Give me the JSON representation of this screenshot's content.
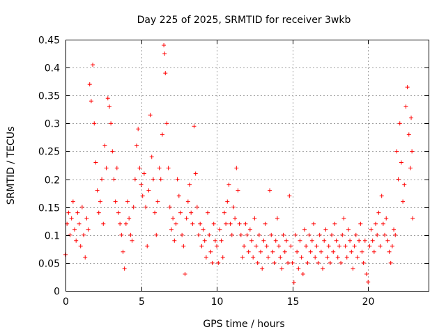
{
  "chart_data": {
    "type": "scatter",
    "title": "Day 225 of 2025, SRMTID for receiver 3wkb",
    "xlabel": "GPS time / hours",
    "ylabel": "SRMTID / TECUs",
    "xlim": [
      0,
      24
    ],
    "ylim": [
      0,
      0.45
    ],
    "xticks": [
      0,
      5,
      10,
      15,
      20
    ],
    "yticks": [
      0,
      0.05,
      0.1,
      0.15,
      0.2,
      0.25,
      0.3,
      0.35,
      0.4,
      0.45
    ],
    "grid": true,
    "marker": "+",
    "color": "#ff0000",
    "series": [
      {
        "name": "SRMTID",
        "points": [
          [
            0.0,
            0.065
          ],
          [
            0.1,
            0.12
          ],
          [
            0.2,
            0.14
          ],
          [
            0.3,
            0.1
          ],
          [
            0.4,
            0.13
          ],
          [
            0.5,
            0.16
          ],
          [
            0.6,
            0.11
          ],
          [
            0.7,
            0.09
          ],
          [
            0.8,
            0.14
          ],
          [
            0.9,
            0.12
          ],
          [
            1.0,
            0.08
          ],
          [
            1.1,
            0.15
          ],
          [
            1.2,
            0.1
          ],
          [
            1.3,
            0.06
          ],
          [
            1.4,
            0.13
          ],
          [
            1.5,
            0.11
          ],
          [
            1.6,
            0.37
          ],
          [
            1.7,
            0.34
          ],
          [
            1.8,
            0.405
          ],
          [
            1.9,
            0.3
          ],
          [
            2.0,
            0.23
          ],
          [
            2.1,
            0.18
          ],
          [
            2.2,
            0.14
          ],
          [
            2.3,
            0.16
          ],
          [
            2.4,
            0.2
          ],
          [
            2.5,
            0.12
          ],
          [
            2.6,
            0.26
          ],
          [
            2.7,
            0.22
          ],
          [
            2.8,
            0.345
          ],
          [
            2.9,
            0.33
          ],
          [
            3.0,
            0.3
          ],
          [
            3.1,
            0.25
          ],
          [
            3.2,
            0.2
          ],
          [
            3.3,
            0.16
          ],
          [
            3.4,
            0.22
          ],
          [
            3.5,
            0.14
          ],
          [
            3.6,
            0.12
          ],
          [
            3.7,
            0.1
          ],
          [
            3.8,
            0.07
          ],
          [
            3.9,
            0.04
          ],
          [
            4.0,
            0.12
          ],
          [
            4.1,
            0.16
          ],
          [
            4.2,
            0.13
          ],
          [
            4.3,
            0.1
          ],
          [
            4.4,
            0.09
          ],
          [
            4.5,
            0.15
          ],
          [
            4.6,
            0.2
          ],
          [
            4.7,
            0.26
          ],
          [
            4.8,
            0.29
          ],
          [
            4.9,
            0.22
          ],
          [
            5.0,
            0.19
          ],
          [
            5.1,
            0.17
          ],
          [
            5.2,
            0.21
          ],
          [
            5.3,
            0.15
          ],
          [
            5.4,
            0.08
          ],
          [
            5.5,
            0.18
          ],
          [
            5.6,
            0.315
          ],
          [
            5.7,
            0.24
          ],
          [
            5.8,
            0.2
          ],
          [
            5.9,
            0.14
          ],
          [
            6.0,
            0.1
          ],
          [
            6.1,
            0.16
          ],
          [
            6.2,
            0.22
          ],
          [
            6.3,
            0.2
          ],
          [
            6.4,
            0.28
          ],
          [
            6.5,
            0.44
          ],
          [
            6.55,
            0.425
          ],
          [
            6.6,
            0.39
          ],
          [
            6.7,
            0.3
          ],
          [
            6.8,
            0.22
          ],
          [
            6.9,
            0.15
          ],
          [
            7.0,
            0.11
          ],
          [
            7.1,
            0.13
          ],
          [
            7.2,
            0.09
          ],
          [
            7.3,
            0.12
          ],
          [
            7.4,
            0.2
          ],
          [
            7.5,
            0.17
          ],
          [
            7.6,
            0.14
          ],
          [
            7.7,
            0.1
          ],
          [
            7.8,
            0.08
          ],
          [
            7.9,
            0.03
          ],
          [
            8.0,
            0.13
          ],
          [
            8.1,
            0.16
          ],
          [
            8.2,
            0.19
          ],
          [
            8.3,
            0.14
          ],
          [
            8.4,
            0.12
          ],
          [
            8.5,
            0.295
          ],
          [
            8.6,
            0.21
          ],
          [
            8.7,
            0.15
          ],
          [
            8.8,
            0.1
          ],
          [
            8.9,
            0.12
          ],
          [
            9.0,
            0.08
          ],
          [
            9.1,
            0.11
          ],
          [
            9.2,
            0.09
          ],
          [
            9.3,
            0.06
          ],
          [
            9.4,
            0.14
          ],
          [
            9.5,
            0.1
          ],
          [
            9.6,
            0.07
          ],
          [
            9.7,
            0.05
          ],
          [
            9.8,
            0.12
          ],
          [
            9.9,
            0.09
          ],
          [
            10.0,
            0.08
          ],
          [
            10.1,
            0.05
          ],
          [
            10.2,
            0.11
          ],
          [
            10.3,
            0.09
          ],
          [
            10.4,
            0.06
          ],
          [
            10.5,
            0.14
          ],
          [
            10.6,
            0.12
          ],
          [
            10.7,
            0.16
          ],
          [
            10.8,
            0.19
          ],
          [
            10.9,
            0.12
          ],
          [
            11.0,
            0.1
          ],
          [
            11.1,
            0.15
          ],
          [
            11.2,
            0.13
          ],
          [
            11.3,
            0.22
          ],
          [
            11.4,
            0.18
          ],
          [
            11.5,
            0.12
          ],
          [
            11.6,
            0.1
          ],
          [
            11.7,
            0.06
          ],
          [
            11.8,
            0.08
          ],
          [
            11.9,
            0.12
          ],
          [
            12.0,
            0.1
          ],
          [
            12.1,
            0.07
          ],
          [
            12.2,
            0.11
          ],
          [
            12.3,
            0.09
          ],
          [
            12.4,
            0.06
          ],
          [
            12.5,
            0.13
          ],
          [
            12.6,
            0.08
          ],
          [
            12.7,
            0.05
          ],
          [
            12.8,
            0.1
          ],
          [
            12.9,
            0.07
          ],
          [
            13.0,
            0.04
          ],
          [
            13.1,
            0.09
          ],
          [
            13.2,
            0.12
          ],
          [
            13.3,
            0.08
          ],
          [
            13.4,
            0.06
          ],
          [
            13.5,
            0.18
          ],
          [
            13.6,
            0.1
          ],
          [
            13.7,
            0.07
          ],
          [
            13.8,
            0.05
          ],
          [
            13.9,
            0.09
          ],
          [
            14.0,
            0.13
          ],
          [
            14.1,
            0.08
          ],
          [
            14.2,
            0.06
          ],
          [
            14.3,
            0.04
          ],
          [
            14.4,
            0.1
          ],
          [
            14.5,
            0.07
          ],
          [
            14.6,
            0.09
          ],
          [
            14.7,
            0.05
          ],
          [
            14.8,
            0.17
          ],
          [
            14.9,
            0.08
          ],
          [
            15.0,
            0.05
          ],
          [
            15.1,
            0.015
          ],
          [
            15.2,
            0.1
          ],
          [
            15.3,
            0.07
          ],
          [
            15.4,
            0.04
          ],
          [
            15.5,
            0.09
          ],
          [
            15.6,
            0.06
          ],
          [
            15.7,
            0.03
          ],
          [
            15.8,
            0.11
          ],
          [
            15.9,
            0.08
          ],
          [
            16.0,
            0.05
          ],
          [
            16.1,
            0.1
          ],
          [
            16.2,
            0.07
          ],
          [
            16.3,
            0.09
          ],
          [
            16.4,
            0.12
          ],
          [
            16.5,
            0.06
          ],
          [
            16.6,
            0.08
          ],
          [
            16.7,
            0.05
          ],
          [
            16.8,
            0.1
          ],
          [
            16.9,
            0.07
          ],
          [
            17.0,
            0.04
          ],
          [
            17.1,
            0.09
          ],
          [
            17.2,
            0.11
          ],
          [
            17.3,
            0.06
          ],
          [
            17.4,
            0.08
          ],
          [
            17.5,
            0.05
          ],
          [
            17.6,
            0.1
          ],
          [
            17.7,
            0.07
          ],
          [
            17.8,
            0.12
          ],
          [
            17.9,
            0.09
          ],
          [
            18.0,
            0.06
          ],
          [
            18.1,
            0.08
          ],
          [
            18.2,
            0.05
          ],
          [
            18.3,
            0.1
          ],
          [
            18.4,
            0.13
          ],
          [
            18.5,
            0.08
          ],
          [
            18.6,
            0.06
          ],
          [
            18.7,
            0.11
          ],
          [
            18.8,
            0.09
          ],
          [
            18.9,
            0.07
          ],
          [
            19.0,
            0.04
          ],
          [
            19.1,
            0.08
          ],
          [
            19.2,
            0.1
          ],
          [
            19.3,
            0.06
          ],
          [
            19.4,
            0.09
          ],
          [
            19.5,
            0.12
          ],
          [
            19.6,
            0.07
          ],
          [
            19.7,
            0.05
          ],
          [
            19.8,
            0.09
          ],
          [
            19.9,
            0.03
          ],
          [
            20.0,
            0.016
          ],
          [
            20.1,
            0.08
          ],
          [
            20.2,
            0.11
          ],
          [
            20.3,
            0.09
          ],
          [
            20.4,
            0.07
          ],
          [
            20.5,
            0.12
          ],
          [
            20.6,
            0.1
          ],
          [
            20.7,
            0.14
          ],
          [
            20.8,
            0.08
          ],
          [
            20.9,
            0.17
          ],
          [
            21.0,
            0.12
          ],
          [
            21.1,
            0.1
          ],
          [
            21.2,
            0.13
          ],
          [
            21.3,
            0.09
          ],
          [
            21.4,
            0.07
          ],
          [
            21.5,
            0.05
          ],
          [
            21.6,
            0.08
          ],
          [
            21.7,
            0.11
          ],
          [
            21.8,
            0.1
          ],
          [
            21.9,
            0.25
          ],
          [
            22.0,
            0.2
          ],
          [
            22.1,
            0.3
          ],
          [
            22.2,
            0.23
          ],
          [
            22.3,
            0.16
          ],
          [
            22.4,
            0.19
          ],
          [
            22.5,
            0.33
          ],
          [
            22.6,
            0.365
          ],
          [
            22.7,
            0.28
          ],
          [
            22.8,
            0.22
          ],
          [
            22.85,
            0.31
          ],
          [
            22.9,
            0.25
          ],
          [
            22.95,
            0.13
          ]
        ]
      }
    ]
  }
}
